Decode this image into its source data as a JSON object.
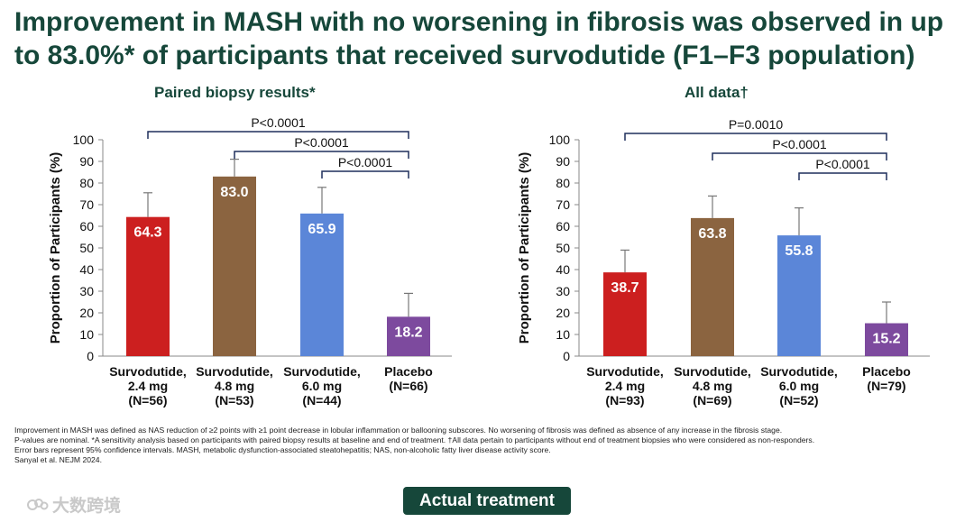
{
  "title": "Improvement in MASH with no worsening in fibrosis was observed in up to 83.0%* of participants that received survodutide (F1–F3 population)",
  "colors": {
    "title": "#16473a",
    "bar_colors": [
      "#cc1f1f",
      "#8b6440",
      "#5b86d8",
      "#7d4a9e"
    ],
    "error_bar": "#777777",
    "bracket": "#1f2f5c"
  },
  "chart_data": [
    {
      "type": "bar",
      "title": "Paired biopsy results*",
      "ylabel": "Proportion of Participants (%)",
      "ylim": [
        0,
        100
      ],
      "yticks": [
        "0",
        "10",
        "20",
        "30",
        "40",
        "50",
        "60",
        "70",
        "80",
        "90",
        "100"
      ],
      "categories": [
        [
          "Survodutide,",
          "2.4 mg",
          "(N=56)"
        ],
        [
          "Survodutide,",
          "4.8 mg",
          "(N=53)"
        ],
        [
          "Survodutide,",
          "6.0 mg",
          "(N=44)"
        ],
        [
          "Placebo",
          "(N=66)"
        ]
      ],
      "values": [
        64.3,
        83.0,
        65.9,
        18.2
      ],
      "value_labels": [
        "64.3",
        "83.0",
        "65.9",
        "18.2"
      ],
      "error_upper": [
        75.5,
        91.0,
        78.0,
        29.0
      ],
      "comparisons": [
        {
          "from": 0,
          "to": 3,
          "label": "P<0.0001"
        },
        {
          "from": 1,
          "to": 3,
          "label": "P<0.0001"
        },
        {
          "from": 2,
          "to": 3,
          "label": "P<0.0001"
        }
      ]
    },
    {
      "type": "bar",
      "title": "All data†",
      "ylabel": "Proportion of Participants (%)",
      "ylim": [
        0,
        100
      ],
      "yticks": [
        "0",
        "10",
        "20",
        "30",
        "40",
        "50",
        "60",
        "70",
        "80",
        "90",
        "100"
      ],
      "categories": [
        [
          "Survodutide,",
          "2.4 mg",
          "(N=93)"
        ],
        [
          "Survodutide,",
          "4.8 mg",
          "(N=69)"
        ],
        [
          "Survodutide,",
          "6.0 mg",
          "(N=52)"
        ],
        [
          "Placebo",
          "(N=79)"
        ]
      ],
      "values": [
        38.7,
        63.8,
        55.8,
        15.2
      ],
      "value_labels": [
        "38.7",
        "63.8",
        "55.8",
        "15.2"
      ],
      "error_upper": [
        49.0,
        74.0,
        68.5,
        25.0
      ],
      "comparisons": [
        {
          "from": 0,
          "to": 3,
          "label": "P=0.0010"
        },
        {
          "from": 1,
          "to": 3,
          "label": "P<0.0001"
        },
        {
          "from": 2,
          "to": 3,
          "label": "P<0.0001"
        }
      ]
    }
  ],
  "footnotes": [
    "Improvement in MASH was defined as NAS reduction of ≥2 points with ≥1 point decrease in lobular inflammation or ballooning subscores. No worsening of fibrosis was defined as absence of any increase in the fibrosis stage.",
    "P-values are nominal. *A sensitivity analysis based on participants with paired biopsy results at baseline and end of treatment. †All data pertain to participants without end of treatment biopsies who were considered as non-responders.",
    "Error bars represent 95% confidence intervals. MASH, metabolic dysfunction-associated steatohepatitis; NAS, non-alcoholic fatty liver disease activity score.",
    "Sanyal et al. NEJM 2024."
  ],
  "button_label": "Actual treatment",
  "watermark": "大数跨境"
}
